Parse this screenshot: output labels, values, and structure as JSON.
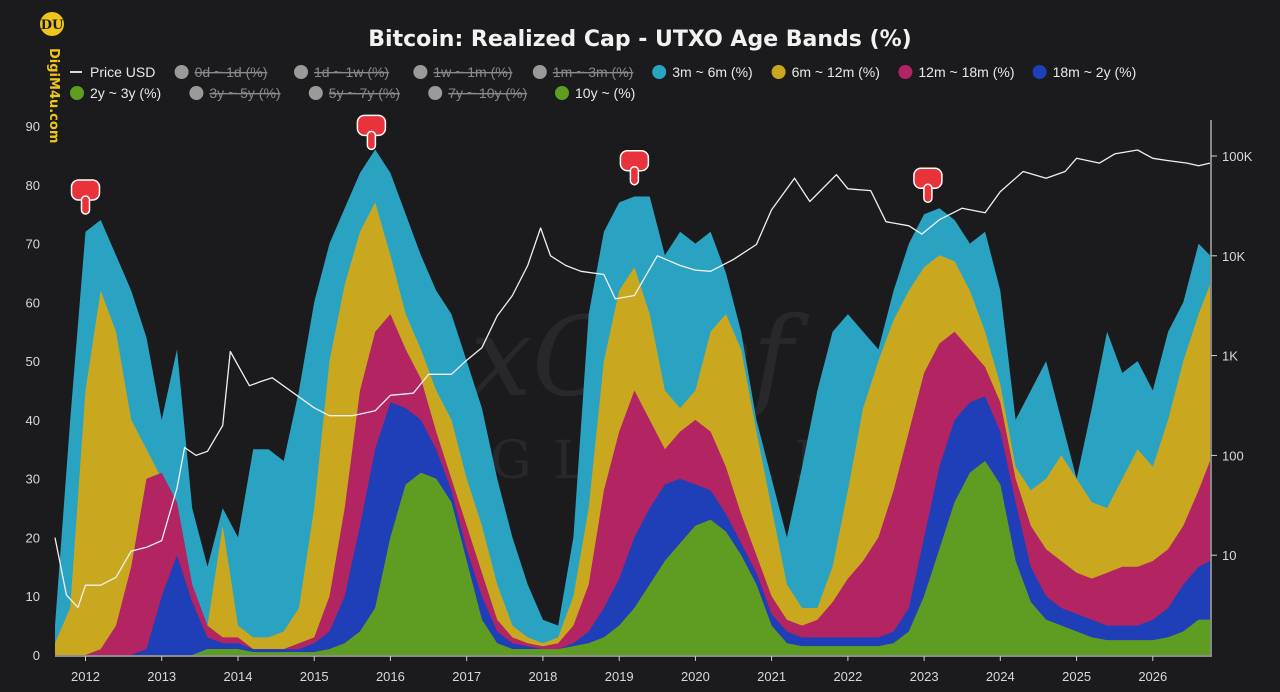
{
  "brand": {
    "logo_mark": "DU",
    "site": "DigiM4u.com"
  },
  "watermark": {
    "line1": "xChef",
    "line2": "GLOBAL"
  },
  "chart_data": {
    "type": "area",
    "title": "Bitcoin: Realized Cap - UTXO Age Bands (%)",
    "stacking": "stacked",
    "legend": [
      {
        "label": "Price USD",
        "color": "#d9d9d9",
        "marker": "line",
        "enabled": true
      },
      {
        "label": "0d ~ 1d (%)",
        "color": "#9a9a9a",
        "marker": "dot",
        "enabled": false
      },
      {
        "label": "1d ~ 1w (%)",
        "color": "#9a9a9a",
        "marker": "dot",
        "enabled": false
      },
      {
        "label": "1w ~ 1m (%)",
        "color": "#9a9a9a",
        "marker": "dot",
        "enabled": false
      },
      {
        "label": "1m ~ 3m (%)",
        "color": "#9a9a9a",
        "marker": "dot",
        "enabled": false
      },
      {
        "label": "3m ~ 6m (%)",
        "color": "#2aa3c2",
        "marker": "dot",
        "enabled": true
      },
      {
        "label": "6m ~ 12m (%)",
        "color": "#c9a820",
        "marker": "dot",
        "enabled": true
      },
      {
        "label": "12m ~ 18m (%)",
        "color": "#b22462",
        "marker": "dot",
        "enabled": true
      },
      {
        "label": "18m ~ 2y (%)",
        "color": "#1f3fb8",
        "marker": "dot",
        "enabled": true
      },
      {
        "label": "2y ~ 3y (%)",
        "color": "#5f9c22",
        "marker": "dot",
        "enabled": true
      },
      {
        "label": "3y ~ 5y (%)",
        "color": "#9a9a9a",
        "marker": "dot",
        "enabled": false
      },
      {
        "label": "5y ~ 7y (%)",
        "color": "#9a9a9a",
        "marker": "dot",
        "enabled": false
      },
      {
        "label": "7y ~ 10y (%)",
        "color": "#9a9a9a",
        "marker": "dot",
        "enabled": false
      },
      {
        "label": "10y ~ (%)",
        "color": "#5f9c22",
        "marker": "dot",
        "enabled": true
      }
    ],
    "x_ticks": [
      "2012",
      "2013",
      "2014",
      "2015",
      "2016",
      "2017",
      "2018",
      "2019",
      "2020",
      "2021",
      "2022",
      "2023",
      "2024",
      "2025",
      "2026"
    ],
    "x_range": [
      2011.6,
      2026.75
    ],
    "y_left": {
      "range": [
        0,
        90
      ],
      "ticks": [
        0,
        10,
        20,
        30,
        40,
        50,
        60,
        70,
        80,
        90
      ]
    },
    "y_right": {
      "scale": "log",
      "range": [
        1,
        200000
      ],
      "ticks": [
        10,
        100,
        1000,
        10000,
        100000
      ],
      "tick_labels": [
        "10",
        "100",
        "1K",
        "10K",
        "100K"
      ]
    },
    "grid": false,
    "legend_position": "top",
    "x": [
      2011.6,
      2011.8,
      2012.0,
      2012.2,
      2012.4,
      2012.6,
      2012.8,
      2013.0,
      2013.2,
      2013.4,
      2013.6,
      2013.8,
      2014.0,
      2014.2,
      2014.4,
      2014.6,
      2014.8,
      2015.0,
      2015.2,
      2015.4,
      2015.6,
      2015.8,
      2016.0,
      2016.2,
      2016.4,
      2016.6,
      2016.8,
      2017.0,
      2017.2,
      2017.4,
      2017.6,
      2017.8,
      2018.0,
      2018.2,
      2018.4,
      2018.6,
      2018.8,
      2019.0,
      2019.2,
      2019.4,
      2019.6,
      2019.8,
      2020.0,
      2020.2,
      2020.4,
      2020.6,
      2020.8,
      2021.0,
      2021.2,
      2021.4,
      2021.6,
      2021.8,
      2022.0,
      2022.2,
      2022.4,
      2022.6,
      2022.8,
      2023.0,
      2023.2,
      2023.4,
      2023.6,
      2023.8,
      2024.0,
      2024.2,
      2024.4,
      2024.6,
      2024.8,
      2025.0,
      2025.2,
      2025.4,
      2025.6,
      2025.8,
      2026.0,
      2026.2,
      2026.4,
      2026.6,
      2026.75
    ],
    "cumulative_tops": {
      "10y ~ (%)": [
        0,
        0,
        0,
        0,
        0,
        0,
        0,
        0,
        0,
        0,
        1,
        1,
        1,
        0.5,
        0.5,
        0.5,
        0.5,
        0.5,
        1,
        2,
        4,
        8,
        20,
        29,
        31,
        30,
        26,
        16,
        6,
        2,
        1,
        1,
        1,
        1,
        1.5,
        2,
        3,
        5,
        8,
        12,
        16,
        19,
        22,
        23,
        21,
        17,
        12,
        5,
        2,
        1.5,
        1.5,
        1.5,
        1.5,
        1.5,
        1.5,
        2,
        4,
        10,
        18,
        26,
        31,
        33,
        29,
        16,
        9,
        6,
        5,
        4,
        3,
        2.5,
        2.5,
        2.5,
        2.5,
        3,
        4,
        6,
        6
      ],
      "2y ~ 3y (%)": [
        0,
        0,
        0,
        0,
        0,
        0,
        0,
        0,
        0,
        0,
        1,
        1,
        1,
        0.5,
        0.5,
        0.5,
        0.5,
        0.5,
        1,
        2,
        4,
        8,
        20,
        29,
        31,
        30,
        26,
        16,
        6,
        2,
        1,
        1,
        1,
        1,
        1.5,
        2,
        3,
        5,
        8,
        12,
        16,
        19,
        22,
        23,
        21,
        17,
        12,
        5,
        2,
        1.5,
        1.5,
        1.5,
        1.5,
        1.5,
        1.5,
        2,
        4,
        10,
        18,
        26,
        31,
        33,
        29,
        16,
        9,
        6,
        5,
        4,
        3,
        2.5,
        2.5,
        2.5,
        2.5,
        3,
        4,
        6,
        6
      ],
      "18m ~ 2y (%)": [
        0,
        0,
        0,
        0,
        0,
        0,
        1,
        10,
        17,
        9,
        3,
        2,
        2,
        1,
        1,
        1,
        1,
        2,
        4,
        10,
        22,
        35,
        43,
        42,
        40,
        35,
        28,
        18,
        10,
        4,
        2,
        1.5,
        1,
        1,
        2,
        4,
        8,
        13,
        20,
        25,
        29,
        30,
        29,
        28,
        24,
        19,
        14,
        7,
        4,
        3,
        3,
        3,
        3,
        3,
        3,
        4,
        8,
        20,
        32,
        40,
        43,
        44,
        38,
        26,
        15,
        10,
        8,
        7,
        6,
        5,
        5,
        5,
        6,
        8,
        12,
        15,
        16
      ],
      "12m ~ 18m (%)": [
        0,
        0,
        0,
        1,
        5,
        15,
        30,
        31,
        26,
        12,
        5,
        3,
        3,
        1,
        1,
        1,
        2,
        3,
        10,
        25,
        45,
        55,
        58,
        52,
        47,
        38,
        30,
        22,
        14,
        6,
        3,
        2,
        1.5,
        2,
        5,
        12,
        28,
        38,
        45,
        40,
        35,
        38,
        40,
        38,
        32,
        24,
        17,
        10,
        6,
        5,
        6,
        9,
        13,
        16,
        20,
        28,
        38,
        48,
        53,
        55,
        52,
        49,
        43,
        30,
        22,
        18,
        16,
        14,
        13,
        14,
        15,
        15,
        16,
        18,
        22,
        28,
        33
      ],
      "6m ~ 12m (%)": [
        2,
        8,
        45,
        62,
        55,
        40,
        35,
        30,
        18,
        8,
        5,
        22,
        5,
        3,
        3,
        4,
        8,
        25,
        50,
        63,
        72,
        77,
        68,
        58,
        52,
        45,
        40,
        30,
        22,
        12,
        5,
        3,
        2,
        3,
        10,
        25,
        50,
        62,
        66,
        58,
        45,
        42,
        45,
        55,
        58,
        52,
        38,
        25,
        12,
        8,
        8,
        15,
        28,
        42,
        50,
        57,
        62,
        66,
        68,
        67,
        62,
        55,
        46,
        32,
        28,
        30,
        34,
        30,
        26,
        25,
        30,
        35,
        32,
        40,
        50,
        58,
        63
      ],
      "3m ~ 6m (%)": [
        5,
        40,
        72,
        74,
        68,
        62,
        54,
        40,
        52,
        25,
        15,
        25,
        20,
        35,
        35,
        33,
        45,
        60,
        70,
        76,
        82,
        86,
        82,
        75,
        68,
        62,
        58,
        50,
        42,
        30,
        20,
        12,
        6,
        5,
        20,
        58,
        72,
        77,
        78,
        78,
        68,
        72,
        70,
        72,
        65,
        55,
        40,
        30,
        20,
        32,
        45,
        55,
        58,
        55,
        52,
        62,
        70,
        75,
        76,
        74,
        70,
        72,
        62,
        40,
        45,
        50,
        40,
        30,
        42,
        55,
        48,
        50,
        45,
        55,
        60,
        70,
        68
      ]
    },
    "price_usd": {
      "x": [
        2011.6,
        2011.75,
        2011.9,
        2012.0,
        2012.2,
        2012.4,
        2012.6,
        2012.8,
        2013.0,
        2013.2,
        2013.3,
        2013.45,
        2013.6,
        2013.8,
        2013.9,
        2014.0,
        2014.15,
        2014.3,
        2014.45,
        2015.0,
        2015.2,
        2015.5,
        2015.8,
        2016.0,
        2016.3,
        2016.5,
        2016.8,
        2017.0,
        2017.2,
        2017.4,
        2017.6,
        2017.8,
        2017.97,
        2018.1,
        2018.3,
        2018.5,
        2018.8,
        2018.95,
        2019.2,
        2019.5,
        2019.8,
        2020.0,
        2020.2,
        2020.5,
        2020.8,
        2021.0,
        2021.3,
        2021.5,
        2021.85,
        2022.0,
        2022.3,
        2022.5,
        2022.8,
        2022.97,
        2023.2,
        2023.5,
        2023.8,
        2024.0,
        2024.3,
        2024.6,
        2024.85,
        2025.0,
        2025.3,
        2025.5,
        2025.8,
        2026.0,
        2026.2,
        2026.45,
        2026.6,
        2026.75
      ],
      "y": [
        15,
        4,
        3,
        5,
        5,
        6,
        11,
        12,
        14,
        47,
        120,
        100,
        110,
        200,
        1100,
        800,
        500,
        550,
        600,
        300,
        250,
        250,
        280,
        400,
        420,
        650,
        650,
        900,
        1200,
        2500,
        4000,
        8000,
        19000,
        10000,
        8000,
        7000,
        6500,
        3700,
        4000,
        10000,
        8000,
        7200,
        7000,
        9200,
        13000,
        29000,
        60000,
        35000,
        65000,
        47000,
        45000,
        22000,
        20000,
        16500,
        23000,
        30000,
        27000,
        44000,
        70000,
        60000,
        70000,
        95000,
        85000,
        105000,
        115000,
        95000,
        90000,
        85000,
        80000,
        85000
      ]
    },
    "annotations": [
      {
        "type": "hand-pointer",
        "x": 2012.0,
        "y": 74
      },
      {
        "type": "hand-pointer",
        "x": 2015.75,
        "y": 85
      },
      {
        "type": "hand-pointer",
        "x": 2019.2,
        "y": 79
      },
      {
        "type": "hand-pointer",
        "x": 2023.05,
        "y": 76
      }
    ]
  }
}
